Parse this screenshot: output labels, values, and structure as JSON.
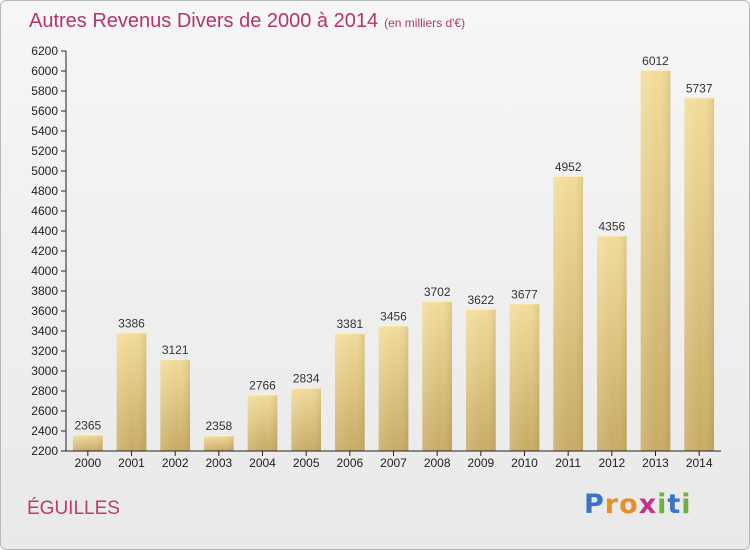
{
  "header": {
    "title": "Autres Revenus Divers de 2000 à 2014",
    "unit": "(en milliers d'€)"
  },
  "footer": {
    "place": "ÉGUILLES",
    "logo_letters": [
      "P",
      "r",
      "o",
      "x",
      "i",
      "t",
      "i"
    ]
  },
  "colors": {
    "title": "#b5356a",
    "bar_light": "#f2dc9a",
    "bar_dark": "#c7aa64",
    "axis": "#222222"
  },
  "chart_data": {
    "type": "bar",
    "title": "Autres Revenus Divers de 2000 à 2014",
    "subtitle": "(en milliers d'€)",
    "xlabel": "",
    "ylabel": "",
    "categories": [
      "2000",
      "2001",
      "2002",
      "2003",
      "2004",
      "2005",
      "2006",
      "2007",
      "2008",
      "2009",
      "2010",
      "2011",
      "2012",
      "2013",
      "2014"
    ],
    "values": [
      2365,
      3386,
      3121,
      2358,
      2766,
      2834,
      3381,
      3456,
      3702,
      3622,
      3677,
      4952,
      4356,
      6012,
      5737
    ],
    "ylim": [
      2200,
      6200
    ],
    "ytick_step": 200,
    "grid": false,
    "legend": "none"
  }
}
